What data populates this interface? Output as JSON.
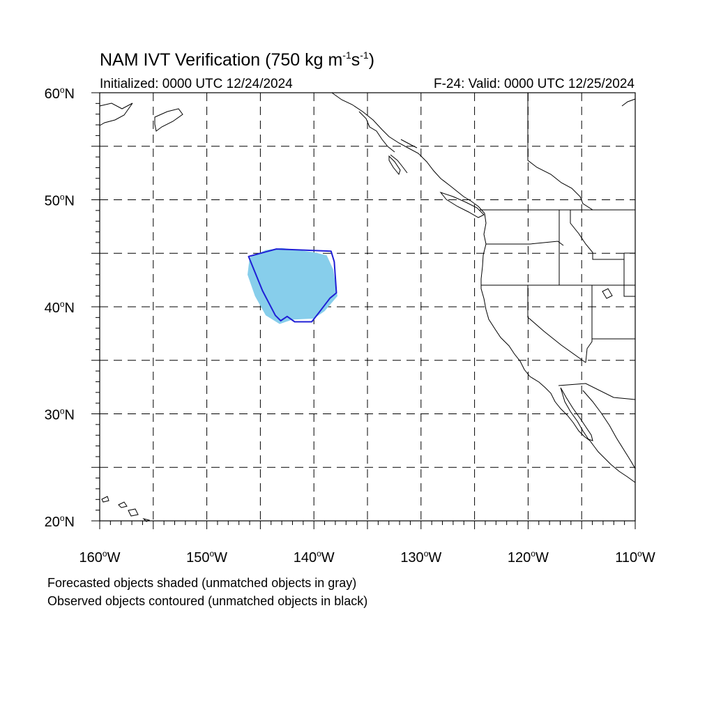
{
  "title": {
    "main": "NAM IVT Verification (750 kg m",
    "exp1": "-1",
    "mid": "s",
    "exp2": "-1",
    "end": ")"
  },
  "subtitle_left": "Initialized: 0000 UTC 12/24/2024",
  "subtitle_right": "F-24: Valid: 0000 UTC 12/25/2024",
  "map": {
    "projection": "cylindrical equidistant",
    "lon_range": [
      -160,
      -110
    ],
    "lat_range": [
      20,
      60
    ],
    "gridlines": "dashed every 5 degrees",
    "lat_labels": [
      {
        "value": 60,
        "num": "60",
        "hem": "N"
      },
      {
        "value": 50,
        "num": "50",
        "hem": "N"
      },
      {
        "value": 40,
        "num": "40",
        "hem": "N"
      },
      {
        "value": 30,
        "num": "30",
        "hem": "N"
      },
      {
        "value": 20,
        "num": "20",
        "hem": "N"
      }
    ],
    "lon_labels": [
      {
        "value": -160,
        "num": "160",
        "hem": "W"
      },
      {
        "value": -150,
        "num": "150",
        "hem": "W"
      },
      {
        "value": -140,
        "num": "140",
        "hem": "W"
      },
      {
        "value": -130,
        "num": "130",
        "hem": "W"
      },
      {
        "value": -120,
        "num": "120",
        "hem": "W"
      },
      {
        "value": -110,
        "num": "110",
        "hem": "W"
      }
    ],
    "forecast_object": {
      "color": "#87ceeb",
      "outline": [
        [
          -146,
          44.6
        ],
        [
          -144.5,
          45.3
        ],
        [
          -143,
          45.5
        ],
        [
          -140,
          45.1
        ],
        [
          -138.8,
          44.8
        ],
        [
          -138.2,
          43.5
        ],
        [
          -137.8,
          41
        ],
        [
          -139,
          39.6
        ],
        [
          -140,
          38.9
        ],
        [
          -142,
          38.8
        ],
        [
          -143.2,
          38.4
        ],
        [
          -144.5,
          39.2
        ],
        [
          -145.5,
          41
        ],
        [
          -146.2,
          43
        ]
      ]
    },
    "observed_object": {
      "color": "#1f1fd6",
      "outline": [
        [
          -146.1,
          44.7
        ],
        [
          -143.5,
          45.4
        ],
        [
          -141,
          45.3
        ],
        [
          -138.4,
          45.2
        ],
        [
          -138.1,
          44.2
        ],
        [
          -137.9,
          41.3
        ],
        [
          -138.5,
          40.8
        ],
        [
          -139.5,
          39.5
        ],
        [
          -140.2,
          38.6
        ],
        [
          -141,
          38.6
        ],
        [
          -141.8,
          38.6
        ],
        [
          -142.5,
          39.1
        ],
        [
          -143.1,
          38.7
        ],
        [
          -143.6,
          39.2
        ],
        [
          -144.8,
          41.5
        ]
      ]
    }
  },
  "notes": [
    "Forecasted objects shaded (unmatched objects in gray)",
    "Observed objects contoured (unmatched objects in black)"
  ]
}
